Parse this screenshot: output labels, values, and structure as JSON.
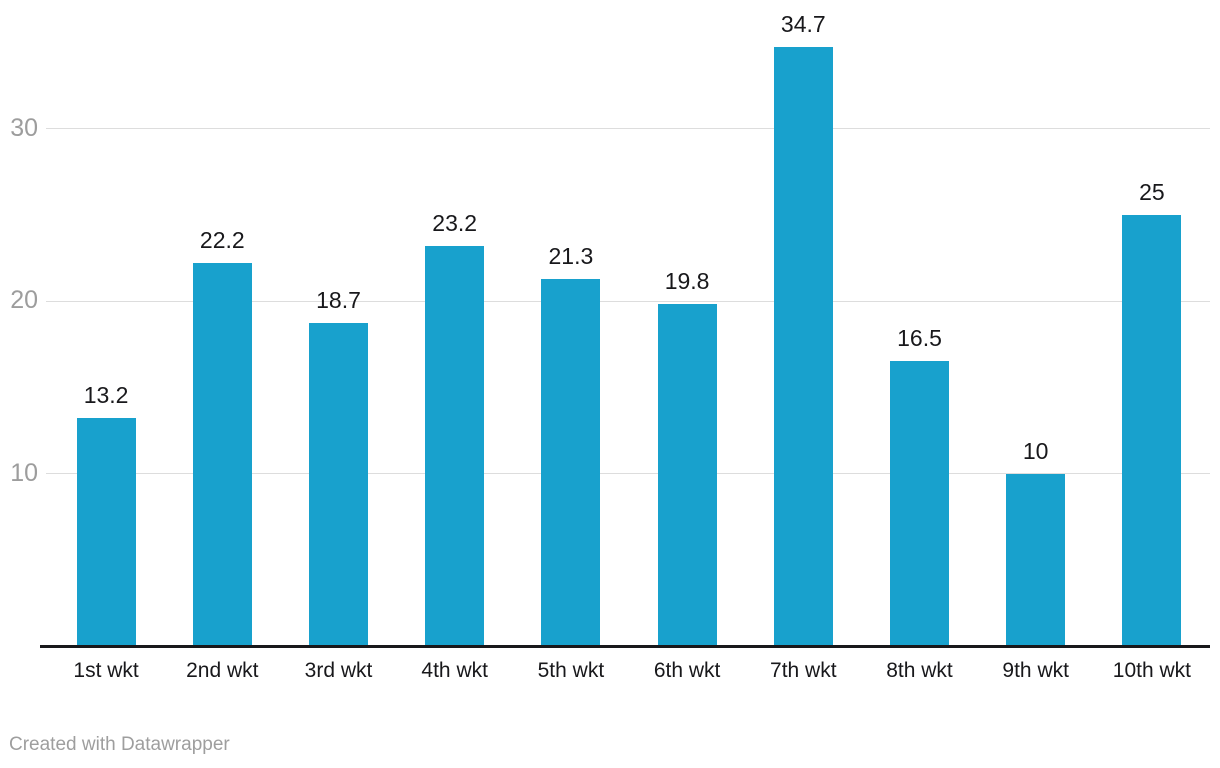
{
  "chart_data": {
    "type": "bar",
    "categories": [
      "1st wkt",
      "2nd wkt",
      "3rd wkt",
      "4th wkt",
      "5th wkt",
      "6th wkt",
      "7th wkt",
      "8th wkt",
      "9th wkt",
      "10th wkt"
    ],
    "values": [
      13.2,
      22.2,
      18.7,
      23.2,
      21.3,
      19.8,
      34.7,
      16.5,
      10,
      25
    ],
    "value_labels": [
      "13.2",
      "22.2",
      "18.7",
      "23.2",
      "21.3",
      "19.8",
      "34.7",
      "16.5",
      "10",
      "25"
    ],
    "title": "",
    "xlabel": "",
    "ylabel": "",
    "y_ticks": [
      10,
      20,
      30
    ],
    "y_tick_labels": [
      "10",
      "20",
      "30"
    ],
    "ylim": [
      0,
      37.4
    ],
    "grid": "horizontal",
    "legend": "none",
    "bar_color": "#18a1cd"
  },
  "footer": {
    "credit": "Created with Datawrapper"
  },
  "colors": {
    "bar": "#18a1cd",
    "gridline": "#dddddd",
    "axis_line": "#18181b",
    "data_label": "#18181b",
    "y_tick_label": "#9d9d9d",
    "credit_text": "#9e9e9e",
    "background": "#ffffff"
  }
}
